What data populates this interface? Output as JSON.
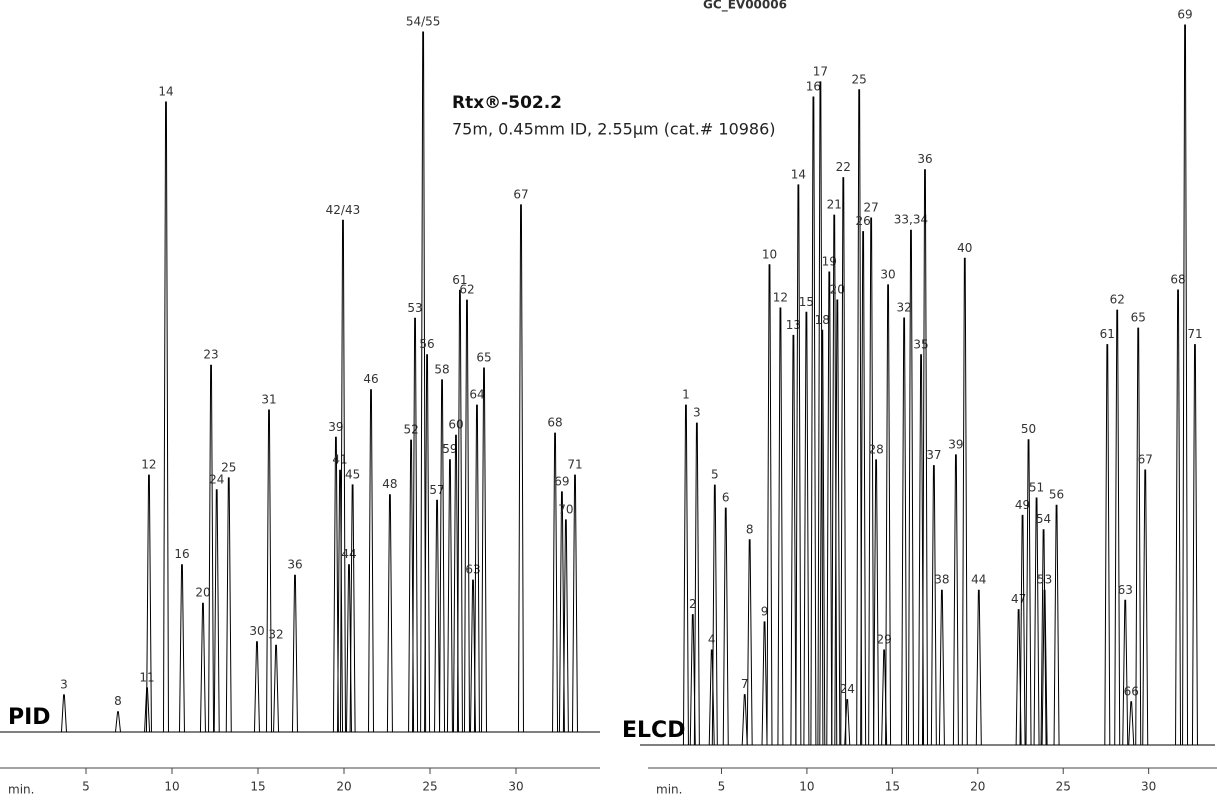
{
  "title": "GC_EV00006",
  "annotation": {
    "column": "Rtx®-502.2",
    "spec": "75m, 0.45mm ID, 2.55µm (cat.# 10986)"
  },
  "chart_data": [
    {
      "type": "line",
      "detector": "PID",
      "xlabel": "min.",
      "xlim": [
        0,
        35
      ],
      "ylim": [
        0,
        100
      ],
      "xticks": [
        5,
        10,
        15,
        20,
        25,
        30
      ],
      "color": "#000000",
      "peak_labels": [
        "3",
        "8",
        "11",
        "12",
        "14",
        "16",
        "20",
        "23",
        "24",
        "25",
        "30",
        "31",
        "32",
        "36",
        "39",
        "41",
        "42/43",
        "44",
        "45",
        "46",
        "48",
        "52",
        "53",
        "54/55",
        "56",
        "57",
        "58",
        "59",
        "60",
        "61",
        "62",
        "63",
        "64",
        "65",
        "67",
        "68",
        "69",
        "70",
        "71"
      ],
      "x": [
        3.72,
        6.86,
        8.55,
        8.66,
        9.65,
        10.58,
        11.8,
        12.27,
        12.6,
        13.3,
        14.94,
        15.64,
        16.05,
        17.15,
        19.53,
        19.77,
        19.94,
        20.29,
        20.5,
        21.57,
        22.67,
        23.9,
        24.13,
        24.6,
        24.83,
        25.41,
        25.7,
        26.16,
        26.51,
        26.74,
        27.15,
        27.5,
        27.73,
        28.14,
        30.29,
        32.27,
        32.67,
        32.9,
        33.43
      ],
      "values": [
        5.3,
        2.9,
        6.3,
        36.7,
        90,
        23.9,
        18.4,
        52.4,
        34.6,
        36.3,
        12.9,
        46,
        12.4,
        22.4,
        42.1,
        37.4,
        73.1,
        23.9,
        35.3,
        48.9,
        33.9,
        41.7,
        59.1,
        100,
        53.9,
        33.1,
        50.3,
        38.9,
        42.4,
        63.1,
        61.7,
        21.7,
        46.7,
        52,
        75.3,
        42.7,
        34.3,
        30.3,
        36.7
      ]
    },
    {
      "type": "line",
      "detector": "ELCD",
      "xlabel": "min.",
      "xlim": [
        0.7,
        34
      ],
      "ylim": [
        0,
        100
      ],
      "xticks": [
        5,
        10,
        15,
        20,
        25,
        30
      ],
      "color": "#000000",
      "peak_labels": [
        "1",
        "2",
        "3",
        "4",
        "5",
        "6",
        "7",
        "8",
        "9",
        "10",
        "12",
        "13",
        "14",
        "15",
        "16",
        "17",
        "18",
        "19",
        "21",
        "20",
        "22",
        "24",
        "25",
        "26",
        "27",
        "28",
        "29",
        "30",
        "32",
        "33,34",
        "35",
        "36",
        "37",
        "38",
        "39",
        "40",
        "44",
        "47",
        "49",
        "50",
        "51",
        "54",
        "53",
        "56",
        "61",
        "62",
        "63",
        "66",
        "65",
        "67",
        "68",
        "69",
        "71"
      ],
      "x": [
        2.92,
        3.32,
        3.56,
        4.43,
        4.61,
        5.25,
        6.36,
        6.65,
        7.52,
        7.81,
        8.45,
        9.21,
        9.5,
        9.97,
        10.38,
        10.79,
        10.9,
        11.31,
        11.6,
        11.78,
        12.13,
        12.36,
        13.06,
        13.29,
        13.76,
        14.05,
        14.52,
        14.75,
        15.69,
        16.09,
        16.68,
        16.91,
        17.43,
        17.9,
        18.72,
        19.24,
        20.06,
        22.39,
        22.62,
        22.97,
        23.44,
        23.85,
        23.91,
        24.61,
        27.58,
        28.16,
        28.63,
        28.98,
        29.39,
        29.8,
        31.72,
        32.13,
        32.71
      ],
      "values": [
        47.2,
        18.1,
        44.7,
        13.2,
        36.1,
        32.9,
        7,
        28.5,
        17.1,
        66.7,
        60.7,
        56.9,
        77.8,
        60.1,
        90,
        92.1,
        57.6,
        65.7,
        73.6,
        61.8,
        78.8,
        6.3,
        91,
        71.3,
        73.2,
        39.6,
        13.2,
        63.9,
        59.3,
        71.5,
        54.2,
        79.9,
        38.8,
        21.5,
        40.3,
        67.6,
        21.5,
        18.8,
        31.9,
        42.4,
        34.3,
        29.9,
        21.5,
        33.3,
        55.6,
        60.4,
        20.1,
        6,
        57.9,
        38.2,
        63.2,
        100,
        55.6
      ]
    }
  ]
}
